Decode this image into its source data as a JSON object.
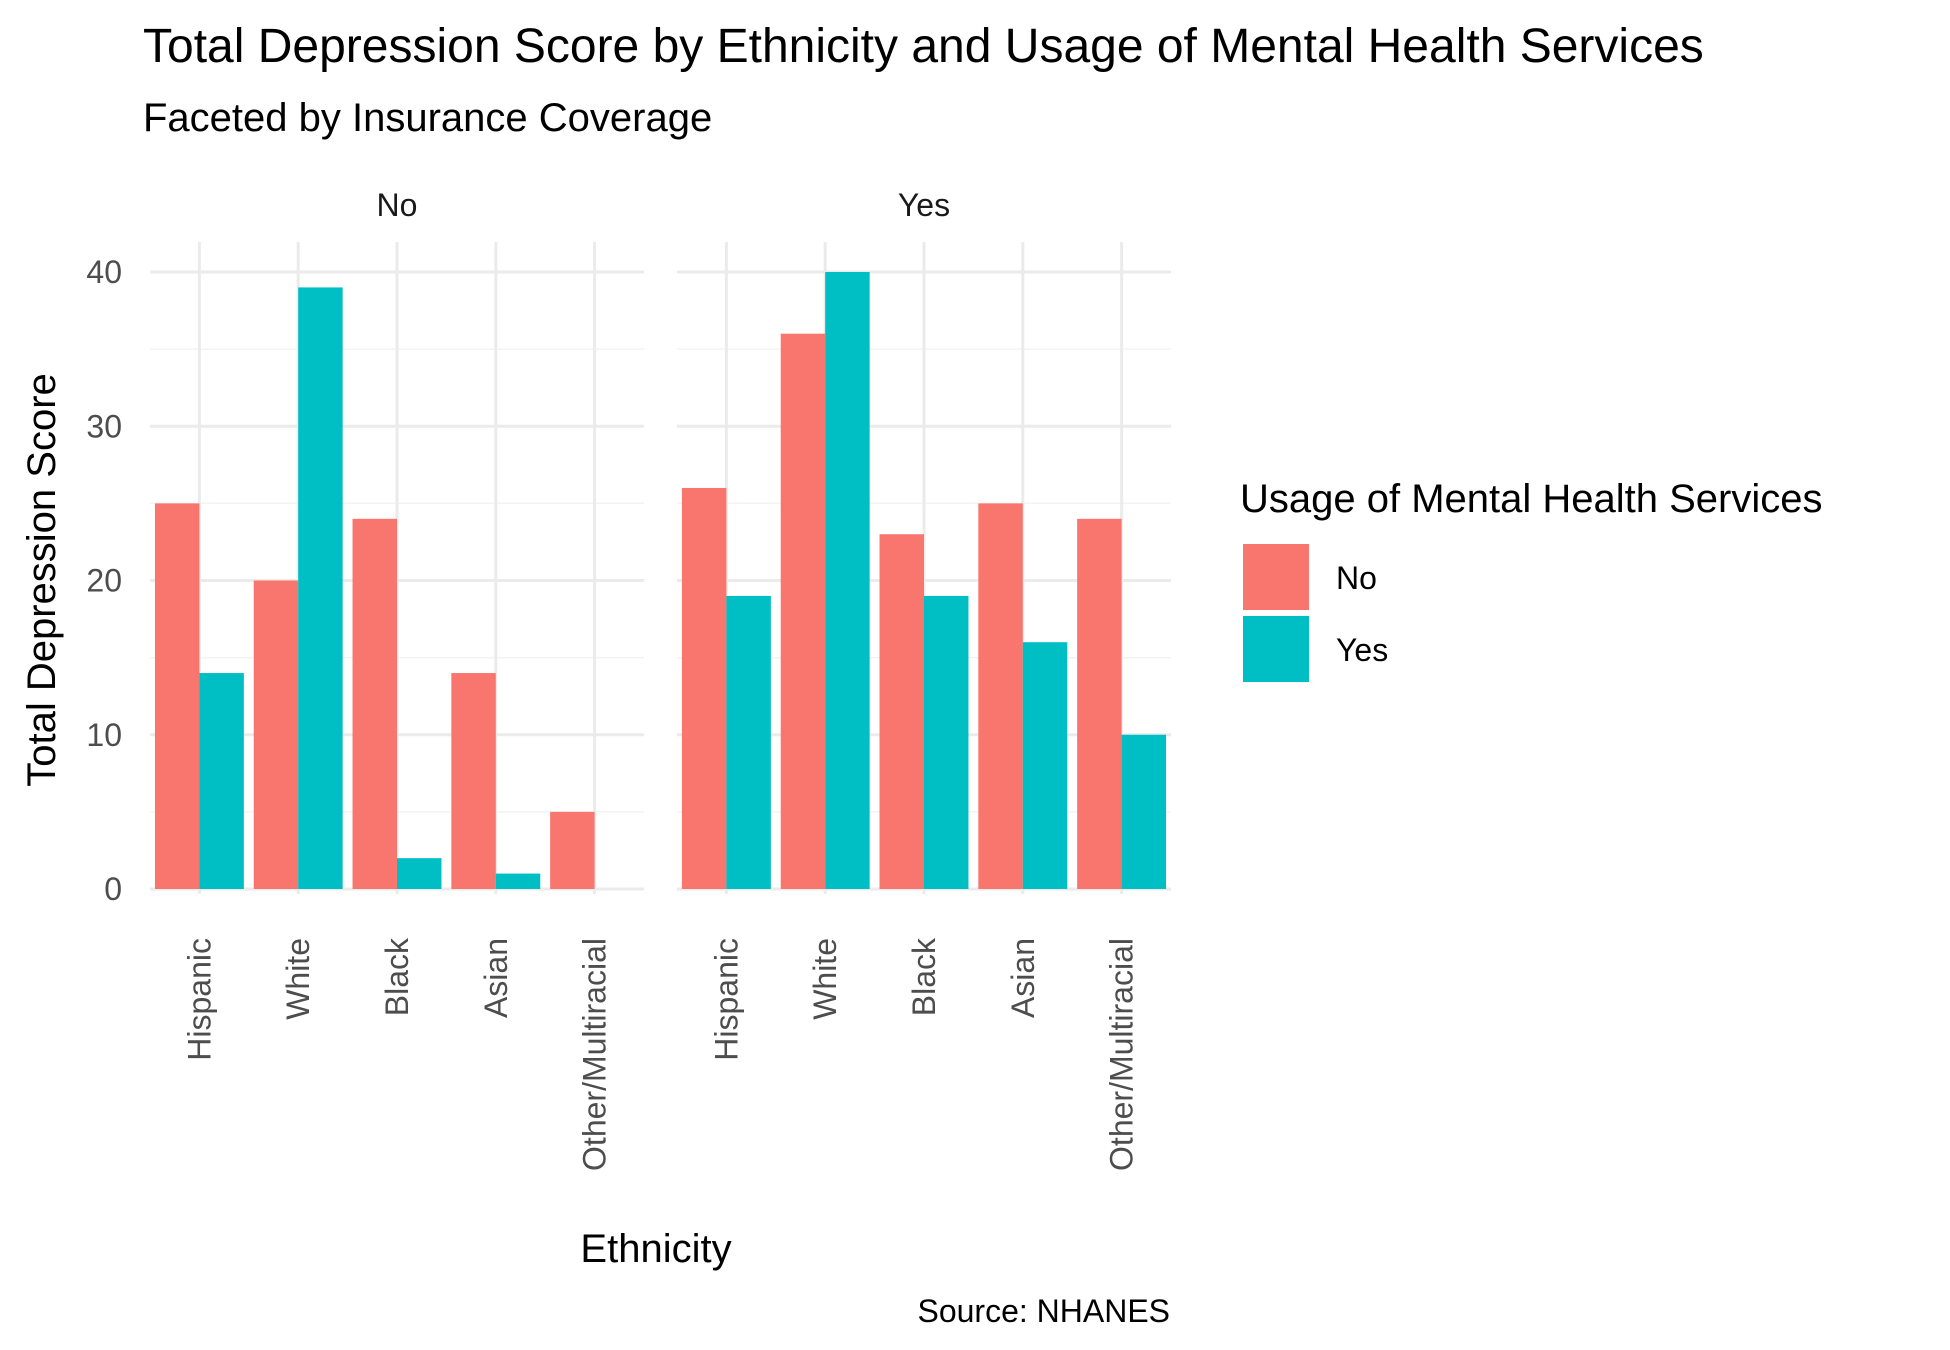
{
  "chart_data": {
    "type": "bar",
    "title": "Total Depression Score by Ethnicity and Usage of Mental Health Services",
    "subtitle": "Faceted by Insurance Coverage",
    "xlabel": "Ethnicity",
    "ylabel": "Total Depression Score",
    "caption": "Source: NHANES",
    "ylim": [
      0,
      40
    ],
    "y_ticks": [
      "0",
      "10",
      "20",
      "30",
      "40"
    ],
    "grid": true,
    "legend": {
      "title": "Usage of Mental Health Services",
      "position": "right",
      "entries": [
        {
          "label": "No",
          "color": "#F8766D"
        },
        {
          "label": "Yes",
          "color": "#00BFC4"
        }
      ]
    },
    "categories": [
      "Hispanic",
      "White",
      "Black",
      "Asian",
      "Other/Multiracial"
    ],
    "facets": [
      {
        "label": "No",
        "series": [
          {
            "name": "No",
            "values": [
              25,
              20,
              24,
              14,
              5
            ]
          },
          {
            "name": "Yes",
            "values": [
              14,
              39,
              2,
              1,
              0
            ]
          }
        ]
      },
      {
        "label": "Yes",
        "series": [
          {
            "name": "No",
            "values": [
              26,
              36,
              23,
              25,
              24
            ]
          },
          {
            "name": "Yes",
            "values": [
              19,
              40,
              19,
              16,
              10
            ]
          }
        ]
      }
    ]
  }
}
